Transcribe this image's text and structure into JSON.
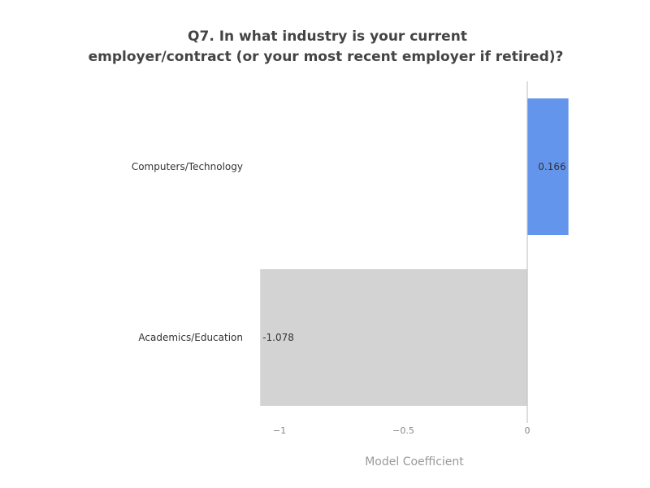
{
  "chart_data": {
    "type": "bar",
    "orientation": "horizontal",
    "title_lines": [
      "Q7. In what industry is your current",
      "employer/contract (or your most recent employer if retired)?"
    ],
    "categories": [
      "Computers/Technology",
      "Academics/Education"
    ],
    "values": [
      0.166,
      -1.078
    ],
    "value_labels": [
      "0.166",
      "-1.078"
    ],
    "colors": [
      "#6495ED",
      "#D3D3D3"
    ],
    "xlabel": "Model Coefficient",
    "xlim": [
      -1.1,
      0.17
    ],
    "xticks": [
      -1,
      -0.5,
      0
    ],
    "xtick_labels": [
      "−1",
      "−0.5",
      "0"
    ],
    "grid": false,
    "legend": "none"
  }
}
